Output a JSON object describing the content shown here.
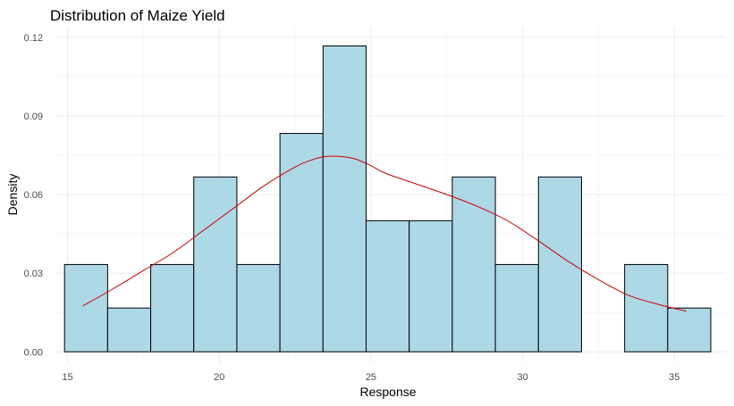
{
  "chart_data": {
    "type": "bar",
    "subtype": "histogram-with-density",
    "title": "Distribution of Maize Yield",
    "xlabel": "Response",
    "ylabel": "Density",
    "xlim": [
      14.6,
      36.7
    ],
    "ylim": [
      -0.004,
      0.124
    ],
    "x_ticks": [
      15,
      20,
      25,
      30,
      35
    ],
    "x_tick_labels": [
      "15",
      "20",
      "25",
      "30",
      "35"
    ],
    "y_ticks": [
      0.0,
      0.03,
      0.06,
      0.09,
      0.12
    ],
    "y_tick_labels": [
      "0.00",
      "0.03",
      "0.06",
      "0.09",
      "0.12"
    ],
    "grid": true,
    "bar_color": "#add8e6",
    "bar_edge_color": "#000000",
    "density_color": "#cc0000",
    "bins": [
      {
        "x0": 14.9,
        "x1": 16.32,
        "density": 0.0333
      },
      {
        "x0": 16.32,
        "x1": 17.74,
        "density": 0.0167
      },
      {
        "x0": 17.74,
        "x1": 19.16,
        "density": 0.0333
      },
      {
        "x0": 19.16,
        "x1": 20.58,
        "density": 0.0667
      },
      {
        "x0": 20.58,
        "x1": 22.0,
        "density": 0.0333
      },
      {
        "x0": 22.0,
        "x1": 23.42,
        "density": 0.0833
      },
      {
        "x0": 23.42,
        "x1": 24.84,
        "density": 0.1167
      },
      {
        "x0": 24.84,
        "x1": 26.26,
        "density": 0.05
      },
      {
        "x0": 26.26,
        "x1": 27.68,
        "density": 0.05
      },
      {
        "x0": 27.68,
        "x1": 29.1,
        "density": 0.0667
      },
      {
        "x0": 29.1,
        "x1": 30.52,
        "density": 0.0333
      },
      {
        "x0": 30.52,
        "x1": 31.94,
        "density": 0.0667
      },
      {
        "x0": 31.94,
        "x1": 33.36,
        "density": 0.0
      },
      {
        "x0": 33.36,
        "x1": 34.78,
        "density": 0.0333
      },
      {
        "x0": 34.78,
        "x1": 36.2,
        "density": 0.0167
      }
    ],
    "density_curve": {
      "x": [
        15.5,
        16.5,
        17.5,
        18.5,
        19.5,
        20.5,
        21.5,
        22.5,
        23.0,
        23.5,
        24.0,
        24.5,
        25.0,
        25.5,
        26.5,
        27.5,
        28.5,
        29.5,
        30.5,
        31.5,
        32.5,
        33.5,
        34.5,
        35.4
      ],
      "y": [
        0.0175,
        0.024,
        0.031,
        0.038,
        0.0465,
        0.055,
        0.0635,
        0.0705,
        0.073,
        0.0745,
        0.0745,
        0.0735,
        0.071,
        0.068,
        0.064,
        0.06,
        0.0555,
        0.05,
        0.0425,
        0.0345,
        0.0275,
        0.0215,
        0.018,
        0.0155
      ]
    }
  }
}
